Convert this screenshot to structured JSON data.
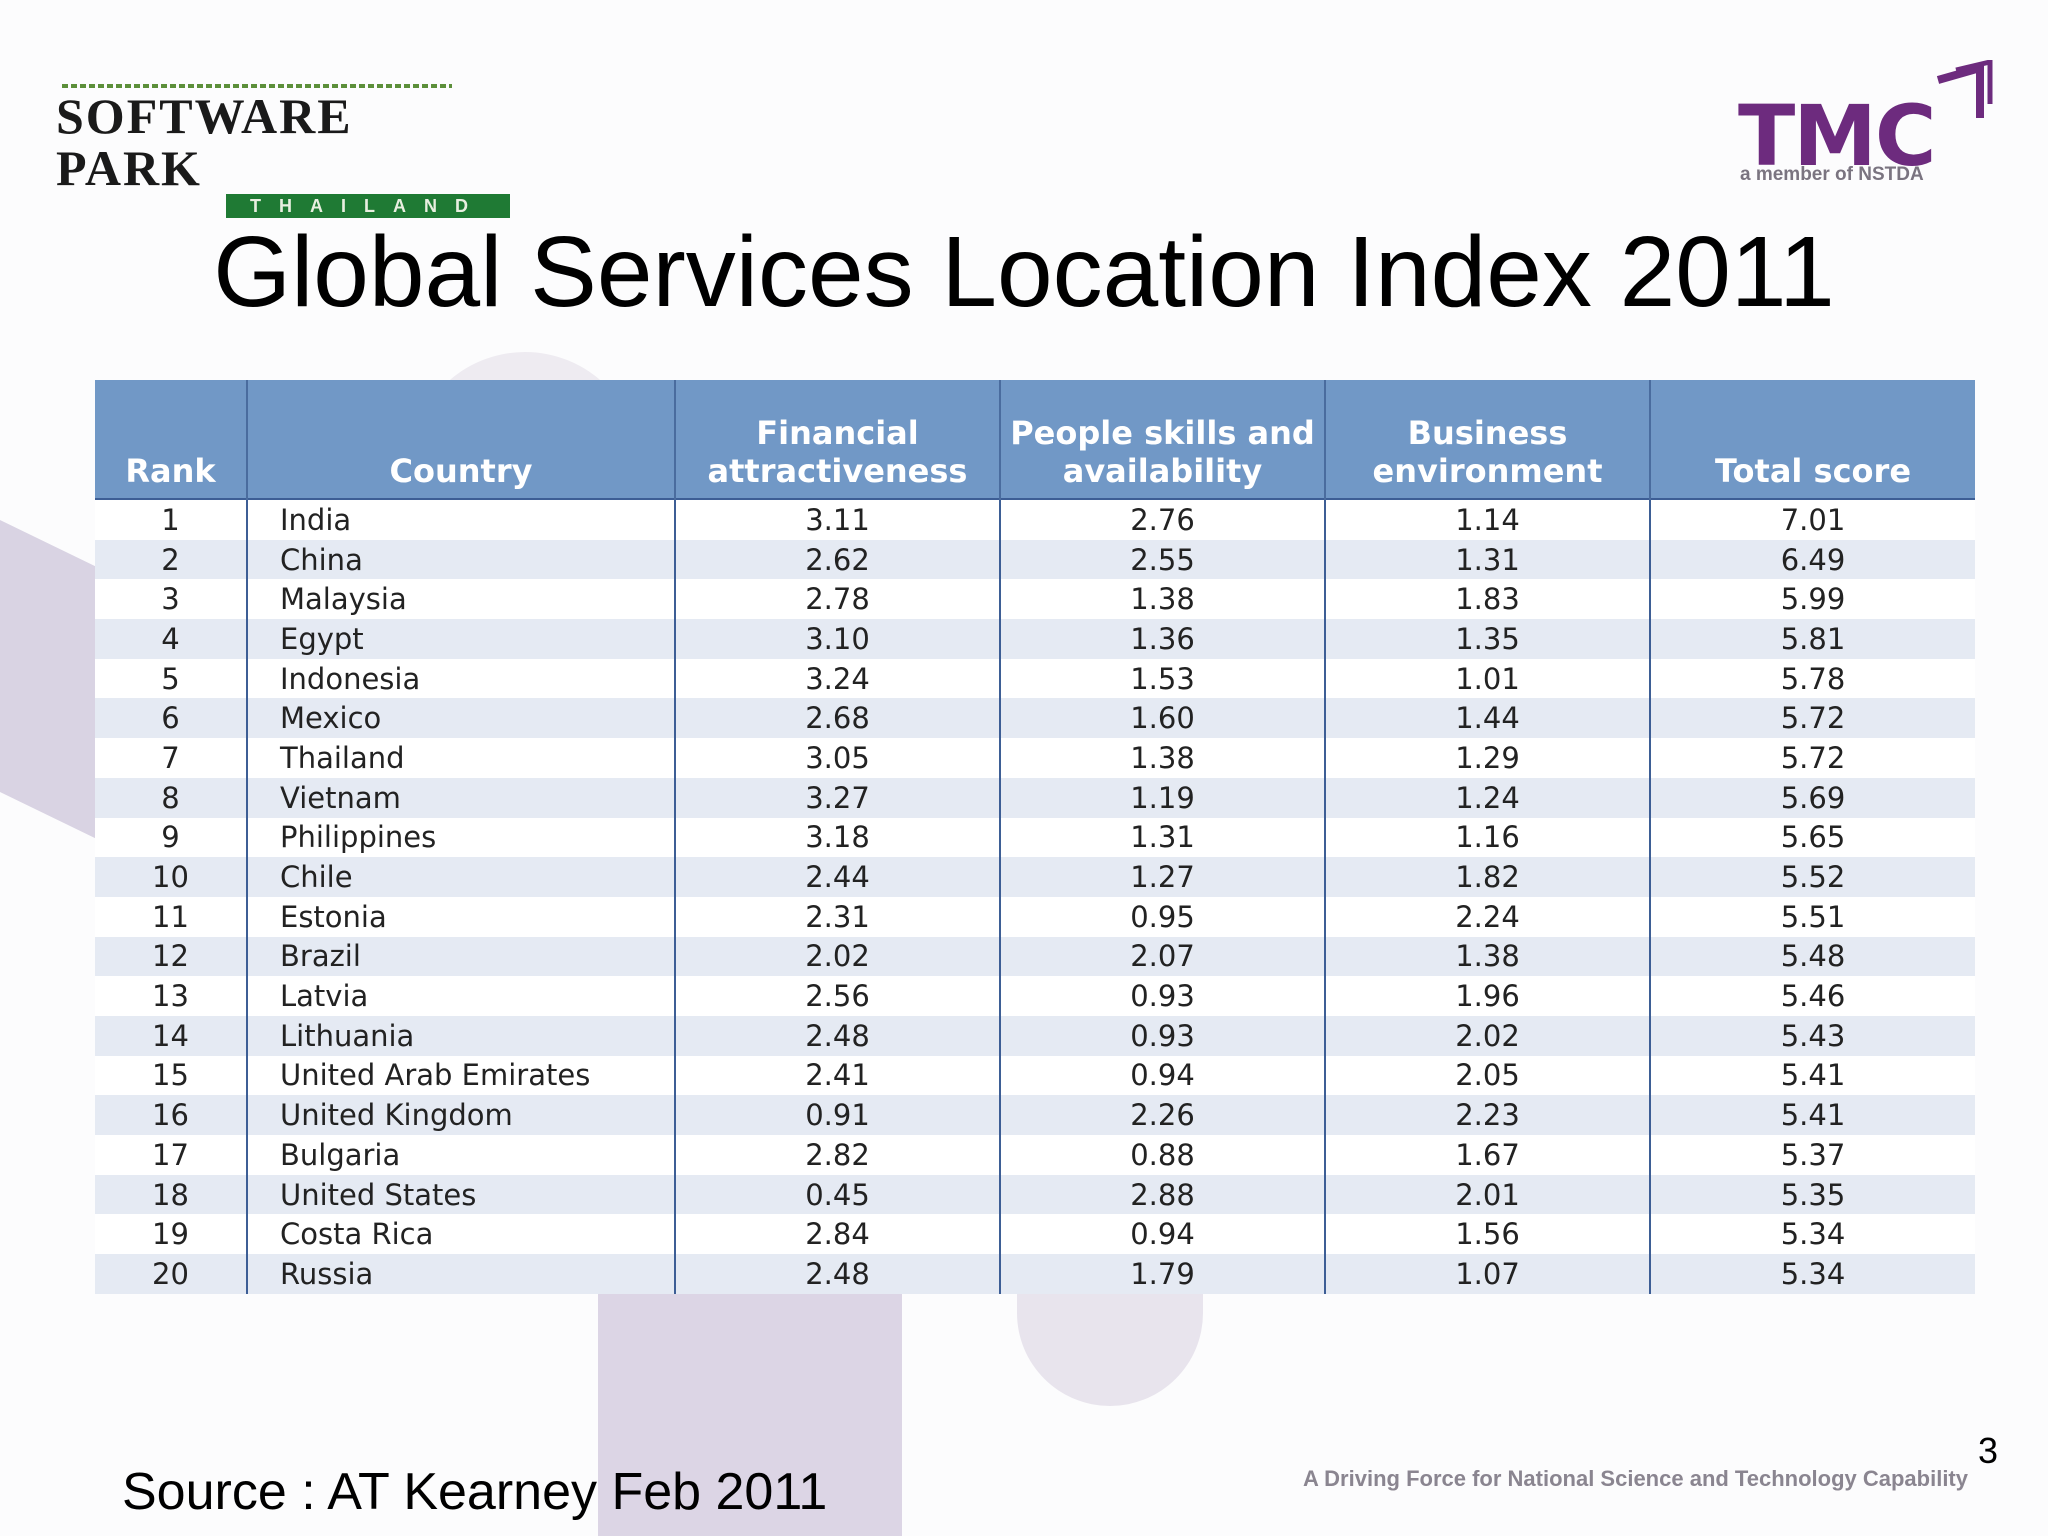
{
  "header": {
    "logo_left": {
      "word": "SOFTWARE PARK",
      "band": "THAILAND"
    },
    "logo_right": {
      "mark": "TMC",
      "sub": "a member of NSTDA"
    }
  },
  "title": "Global Services Location Index 2011",
  "table": {
    "columns": [
      "Rank",
      "Country",
      "Financial attractiveness",
      "People skills and availability",
      "Business environment",
      "Total score"
    ],
    "rows": [
      [
        "1",
        "India",
        "3.11",
        "2.76",
        "1.14",
        "7.01"
      ],
      [
        "2",
        "China",
        "2.62",
        "2.55",
        "1.31",
        "6.49"
      ],
      [
        "3",
        "Malaysia",
        "2.78",
        "1.38",
        "1.83",
        "5.99"
      ],
      [
        "4",
        "Egypt",
        "3.10",
        "1.36",
        "1.35",
        "5.81"
      ],
      [
        "5",
        "Indonesia",
        "3.24",
        "1.53",
        "1.01",
        "5.78"
      ],
      [
        "6",
        "Mexico",
        "2.68",
        "1.60",
        "1.44",
        "5.72"
      ],
      [
        "7",
        "Thailand",
        "3.05",
        "1.38",
        "1.29",
        "5.72"
      ],
      [
        "8",
        "Vietnam",
        "3.27",
        "1.19",
        "1.24",
        "5.69"
      ],
      [
        "9",
        "Philippines",
        "3.18",
        "1.31",
        "1.16",
        "5.65"
      ],
      [
        "10",
        "Chile",
        "2.44",
        "1.27",
        "1.82",
        "5.52"
      ],
      [
        "11",
        "Estonia",
        "2.31",
        "0.95",
        "2.24",
        "5.51"
      ],
      [
        "12",
        "Brazil",
        "2.02",
        "2.07",
        "1.38",
        "5.48"
      ],
      [
        "13",
        "Latvia",
        "2.56",
        "0.93",
        "1.96",
        "5.46"
      ],
      [
        "14",
        "Lithuania",
        "2.48",
        "0.93",
        "2.02",
        "5.43"
      ],
      [
        "15",
        "United Arab Emirates",
        "2.41",
        "0.94",
        "2.05",
        "5.41"
      ],
      [
        "16",
        "United Kingdom",
        "0.91",
        "2.26",
        "2.23",
        "5.41"
      ],
      [
        "17",
        "Bulgaria",
        "2.82",
        "0.88",
        "1.67",
        "5.37"
      ],
      [
        "18",
        "United States",
        "0.45",
        "2.88",
        "2.01",
        "5.35"
      ],
      [
        "19",
        "Costa Rica",
        "2.84",
        "0.94",
        "1.56",
        "5.34"
      ],
      [
        "20",
        "Russia",
        "2.48",
        "1.79",
        "1.07",
        "5.34"
      ]
    ]
  },
  "footer": {
    "source": "Source : AT Kearney Feb 2011",
    "page_number": "3",
    "tagline": "A Driving Force for National Science and Technology Capability"
  }
}
